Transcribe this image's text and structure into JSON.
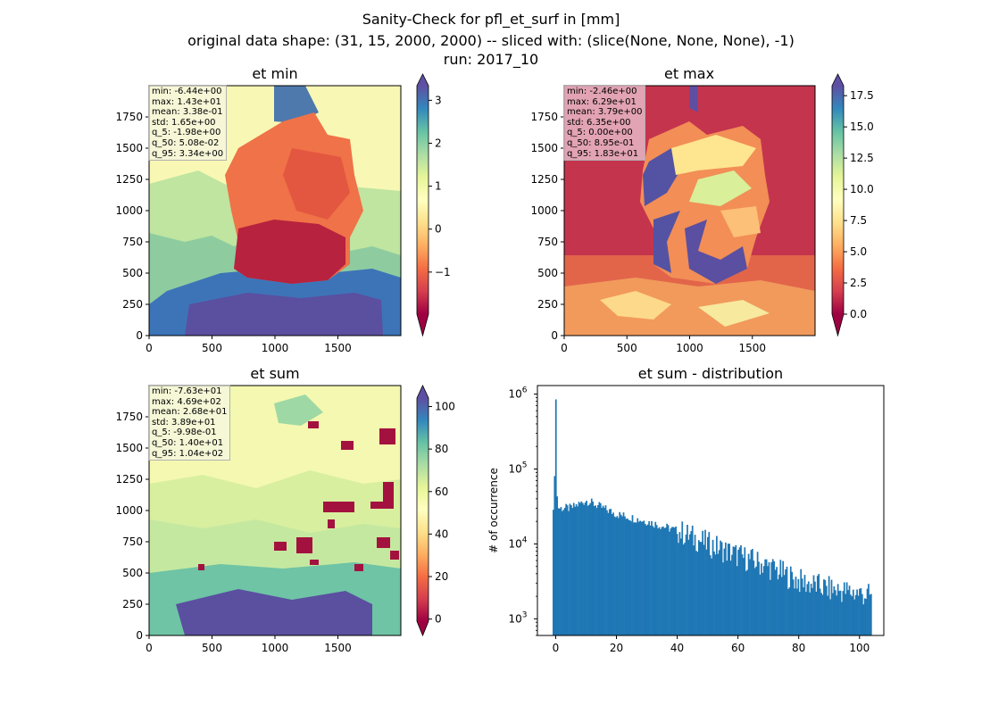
{
  "figure": {
    "title_lines": [
      "Sanity-Check for pfl_et_surf in [mm]",
      "original data shape: (31, 15, 2000, 2000) -- sliced with: (slice(None, None, None), -1)",
      "run: 2017_10"
    ]
  },
  "colormap": "Spectral",
  "panels": {
    "et_min": {
      "title": "et min",
      "stats": [
        "min: -6.44e+00",
        "max: 1.43e+01",
        "mean: 3.38e-01",
        "std: 1.65e+00",
        "q_5: -1.98e+00",
        "q_50: 5.08e-02",
        "q_95: 3.34e+00"
      ],
      "x_ticks": [
        "0",
        "500",
        "1000",
        "1500"
      ],
      "y_ticks": [
        "0",
        "250",
        "500",
        "750",
        "1000",
        "1250",
        "1500",
        "1750"
      ],
      "colorbar_ticks": [
        "−1",
        "0",
        "1",
        "2",
        "3"
      ]
    },
    "et_max": {
      "title": "et max",
      "stats": [
        "min: -2.46e+00",
        "max: 6.29e+01",
        "mean: 3.79e+00",
        "std: 6.35e+00",
        "q_5: 0.00e+00",
        "q_50: 8.95e-01",
        "q_95: 1.83e+01"
      ],
      "x_ticks": [
        "0",
        "500",
        "1000",
        "1500"
      ],
      "y_ticks": [
        "0",
        "250",
        "500",
        "750",
        "1000",
        "1250",
        "1500",
        "1750"
      ],
      "colorbar_ticks": [
        "0.0",
        "2.5",
        "5.0",
        "7.5",
        "10.0",
        "12.5",
        "15.0",
        "17.5"
      ]
    },
    "et_sum": {
      "title": "et sum",
      "stats": [
        "min: -7.63e+01",
        "max: 4.69e+02",
        "mean: 2.68e+01",
        "std: 3.89e+01",
        "q_5: -9.98e-01",
        "q_50: 1.40e+01",
        "q_95: 1.04e+02"
      ],
      "x_ticks": [
        "0",
        "500",
        "1000",
        "1500"
      ],
      "y_ticks": [
        "0",
        "250",
        "500",
        "750",
        "1000",
        "1250",
        "1500",
        "1750"
      ],
      "colorbar_ticks": [
        "0",
        "20",
        "40",
        "60",
        "80",
        "100"
      ]
    },
    "hist": {
      "title": "et sum - distribution",
      "ylabel": "# of occurrence",
      "x_ticks": [
        "0",
        "20",
        "40",
        "60",
        "80",
        "100"
      ],
      "y_ticks": [
        "10^3",
        "10^4",
        "10^5",
        "10^6"
      ]
    }
  },
  "chart_data": [
    {
      "type": "heatmap",
      "title": "et min",
      "xlim": [
        0,
        2000
      ],
      "ylim": [
        0,
        2000
      ],
      "colorbar": {
        "colormap": "Spectral",
        "range": [
          -1.98,
          3.34
        ],
        "extend": "both"
      }
    },
    {
      "type": "heatmap",
      "title": "et max",
      "xlim": [
        0,
        2000
      ],
      "ylim": [
        0,
        2000
      ],
      "colorbar": {
        "colormap": "Spectral",
        "range": [
          0.0,
          18.3
        ],
        "extend": "both"
      }
    },
    {
      "type": "heatmap",
      "title": "et sum",
      "xlim": [
        0,
        2000
      ],
      "ylim": [
        0,
        2000
      ],
      "colorbar": {
        "colormap": "Spectral",
        "range": [
          -1.0,
          104.0
        ],
        "extend": "both"
      }
    },
    {
      "type": "bar",
      "title": "et sum - distribution",
      "ylabel": "# of occurrence",
      "yscale": "log",
      "xlim": [
        -6,
        108
      ],
      "ylim": [
        600,
        1300000
      ],
      "bin_range": [
        -1.0,
        104.0
      ],
      "bins": 250,
      "color": "#1f77b4",
      "profile_x": [
        -1,
        -0.5,
        0,
        0.5,
        1,
        5,
        10,
        20,
        30,
        40,
        50,
        60,
        70,
        80,
        90,
        100,
        104
      ],
      "profile_y": [
        35000,
        30000,
        850000,
        35000,
        30000,
        30000,
        38000,
        25000,
        20000,
        15000,
        10000,
        7000,
        5000,
        3200,
        2500,
        2200,
        2000
      ]
    }
  ]
}
